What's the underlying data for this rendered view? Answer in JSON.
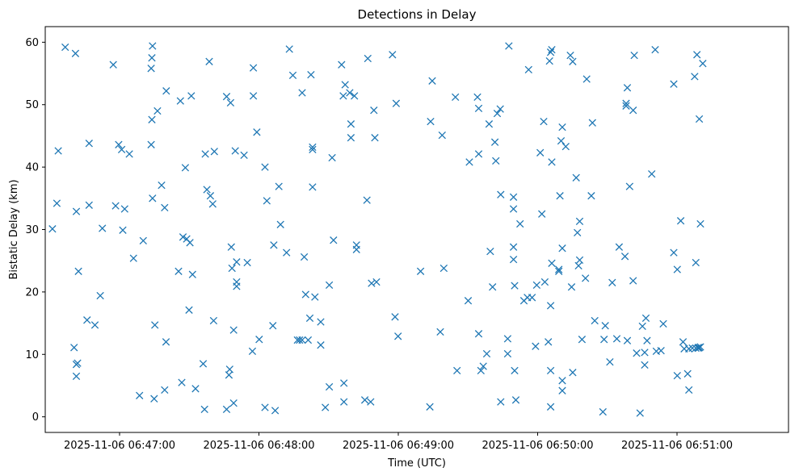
{
  "chart_data": {
    "type": "scatter",
    "title": "Detections in Delay",
    "xlabel": "Time (UTC)",
    "ylabel": "Bistatic Delay (km)",
    "marker": "x",
    "color": "#1f77b4",
    "grid": false,
    "x_start_time": "2025-11-06 06:46:30",
    "x_unit": "seconds",
    "xlim": [
      -2,
      318
    ],
    "ylim": [
      -2.5,
      62.5
    ],
    "x_ticks": [
      {
        "x": 30,
        "label": "2025-11-06 06:47:00"
      },
      {
        "x": 90,
        "label": "2025-11-06 06:48:00"
      },
      {
        "x": 150,
        "label": "2025-11-06 06:49:00"
      },
      {
        "x": 210,
        "label": "2025-11-06 06:50:00"
      },
      {
        "x": 270,
        "label": "2025-11-06 06:51:00"
      }
    ],
    "y_ticks": [
      0,
      10,
      20,
      30,
      40,
      50,
      60
    ],
    "points": [
      [
        1.1,
        30.1
      ],
      [
        3.0,
        34.2
      ],
      [
        3.6,
        42.6
      ],
      [
        6.6,
        59.2
      ],
      [
        10.4,
        11.1
      ],
      [
        11.0,
        58.2
      ],
      [
        11.4,
        32.9
      ],
      [
        11.4,
        8.4
      ],
      [
        11.9,
        8.6
      ],
      [
        11.4,
        6.5
      ],
      [
        12.3,
        23.3
      ],
      [
        16.0,
        15.5
      ],
      [
        16.9,
        43.8
      ],
      [
        16.9,
        33.9
      ],
      [
        19.4,
        14.7
      ],
      [
        21.7,
        19.4
      ],
      [
        22.6,
        30.2
      ],
      [
        27.3,
        56.4
      ],
      [
        28.3,
        33.8
      ],
      [
        29.6,
        43.6
      ],
      [
        30.9,
        42.8
      ],
      [
        31.4,
        29.9
      ],
      [
        32.2,
        33.3
      ],
      [
        34.2,
        42.1
      ],
      [
        36.0,
        25.4
      ],
      [
        38.6,
        3.4
      ],
      [
        40.2,
        28.2
      ],
      [
        43.6,
        55.8
      ],
      [
        43.6,
        43.6
      ],
      [
        43.9,
        47.6
      ],
      [
        43.9,
        57.5
      ],
      [
        44.2,
        59.4
      ],
      [
        44.2,
        35.0
      ],
      [
        44.9,
        2.9
      ],
      [
        45.2,
        14.7
      ],
      [
        46.3,
        49.0
      ],
      [
        48.1,
        37.1
      ],
      [
        49.4,
        4.3
      ],
      [
        49.4,
        33.5
      ],
      [
        50.0,
        12.0
      ],
      [
        50.1,
        52.2
      ],
      [
        55.4,
        23.3
      ],
      [
        56.2,
        50.6
      ],
      [
        56.8,
        5.5
      ],
      [
        57.3,
        28.8
      ],
      [
        58.3,
        39.9
      ],
      [
        58.9,
        28.5
      ],
      [
        59.9,
        17.1
      ],
      [
        60.3,
        27.9
      ],
      [
        60.9,
        51.4
      ],
      [
        61.4,
        22.8
      ],
      [
        62.7,
        4.5
      ],
      [
        66.0,
        8.5
      ],
      [
        66.6,
        1.2
      ],
      [
        66.9,
        42.1
      ],
      [
        67.6,
        36.4
      ],
      [
        68.6,
        56.9
      ],
      [
        69.1,
        35.4
      ],
      [
        70.1,
        34.1
      ],
      [
        70.5,
        15.4
      ],
      [
        70.8,
        42.5
      ],
      [
        76.1,
        1.2
      ],
      [
        76.1,
        51.3
      ],
      [
        77.1,
        6.7
      ],
      [
        77.4,
        7.6
      ],
      [
        77.8,
        50.3
      ],
      [
        78.1,
        27.2
      ],
      [
        78.4,
        23.8
      ],
      [
        79.1,
        2.2
      ],
      [
        79.1,
        13.9
      ],
      [
        79.8,
        42.6
      ],
      [
        80.4,
        24.8
      ],
      [
        80.4,
        21.6
      ],
      [
        80.4,
        20.9
      ],
      [
        83.6,
        41.9
      ],
      [
        85.0,
        24.7
      ],
      [
        87.2,
        10.5
      ],
      [
        87.6,
        55.9
      ],
      [
        87.6,
        51.4
      ],
      [
        89.1,
        45.6
      ],
      [
        90.1,
        12.4
      ],
      [
        92.6,
        40.0
      ],
      [
        92.6,
        1.5
      ],
      [
        93.4,
        34.6
      ],
      [
        96.0,
        14.6
      ],
      [
        96.4,
        27.5
      ],
      [
        97.0,
        1.0
      ],
      [
        98.6,
        36.9
      ],
      [
        99.3,
        30.8
      ],
      [
        101.9,
        26.3
      ],
      [
        103.1,
        58.9
      ],
      [
        104.6,
        54.7
      ],
      [
        106.6,
        12.3
      ],
      [
        107.5,
        12.3
      ],
      [
        108.6,
        12.3
      ],
      [
        108.6,
        51.9
      ],
      [
        109.5,
        25.6
      ],
      [
        110.1,
        19.6
      ],
      [
        111.2,
        12.3
      ],
      [
        111.9,
        15.8
      ],
      [
        112.4,
        54.8
      ],
      [
        113.1,
        36.8
      ],
      [
        113.1,
        43.2
      ],
      [
        113.1,
        42.8
      ],
      [
        114.1,
        19.2
      ],
      [
        116.6,
        15.2
      ],
      [
        116.6,
        11.5
      ],
      [
        118.6,
        1.5
      ],
      [
        120.3,
        4.8
      ],
      [
        120.3,
        21.1
      ],
      [
        121.5,
        41.5
      ],
      [
        122.1,
        28.3
      ],
      [
        125.6,
        56.4
      ],
      [
        126.3,
        51.4
      ],
      [
        126.6,
        5.4
      ],
      [
        126.6,
        2.4
      ],
      [
        127.1,
        53.2
      ],
      [
        129.1,
        51.9
      ],
      [
        129.6,
        46.9
      ],
      [
        129.6,
        44.7
      ],
      [
        131.1,
        51.4
      ],
      [
        132.0,
        27.5
      ],
      [
        132.0,
        26.8
      ],
      [
        135.6,
        2.7
      ],
      [
        136.5,
        34.7
      ],
      [
        136.9,
        57.4
      ],
      [
        138.1,
        2.4
      ],
      [
        138.5,
        21.4
      ],
      [
        139.5,
        49.1
      ],
      [
        139.9,
        44.7
      ],
      [
        140.6,
        21.6
      ],
      [
        147.5,
        58.0
      ],
      [
        148.6,
        16.0
      ],
      [
        149.1,
        50.2
      ],
      [
        149.9,
        12.9
      ],
      [
        159.6,
        23.3
      ],
      [
        163.6,
        1.6
      ],
      [
        163.9,
        47.3
      ],
      [
        164.6,
        53.8
      ],
      [
        168.1,
        13.6
      ],
      [
        168.9,
        45.1
      ],
      [
        169.6,
        23.8
      ],
      [
        174.6,
        51.2
      ],
      [
        175.3,
        7.4
      ],
      [
        180.1,
        18.6
      ],
      [
        180.6,
        40.8
      ],
      [
        184.1,
        51.2
      ],
      [
        184.6,
        49.4
      ],
      [
        184.6,
        42.1
      ],
      [
        184.6,
        13.3
      ],
      [
        185.6,
        7.4
      ],
      [
        186.6,
        8.1
      ],
      [
        188.1,
        10.1
      ],
      [
        189.1,
        46.9
      ],
      [
        189.6,
        26.5
      ],
      [
        190.6,
        20.8
      ],
      [
        191.6,
        44.0
      ],
      [
        192.0,
        41.0
      ],
      [
        192.6,
        48.6
      ],
      [
        193.9,
        49.3
      ],
      [
        194.1,
        35.6
      ],
      [
        194.1,
        2.4
      ],
      [
        197.1,
        12.5
      ],
      [
        197.1,
        10.1
      ],
      [
        197.6,
        59.4
      ],
      [
        199.6,
        35.2
      ],
      [
        199.6,
        33.3
      ],
      [
        199.6,
        27.2
      ],
      [
        199.6,
        25.2
      ],
      [
        200.1,
        21.0
      ],
      [
        200.1,
        7.4
      ],
      [
        200.6,
        2.7
      ],
      [
        202.4,
        30.9
      ],
      [
        204.1,
        18.6
      ],
      [
        205.6,
        19.1
      ],
      [
        206.1,
        55.6
      ],
      [
        207.6,
        19.1
      ],
      [
        209.1,
        11.3
      ],
      [
        209.6,
        21.1
      ],
      [
        211.1,
        42.3
      ],
      [
        211.8,
        32.5
      ],
      [
        212.6,
        47.3
      ],
      [
        213.1,
        21.6
      ],
      [
        214.6,
        12.0
      ],
      [
        215.1,
        57.0
      ],
      [
        215.6,
        58.4
      ],
      [
        215.6,
        17.8
      ],
      [
        215.6,
        7.4
      ],
      [
        215.6,
        1.6
      ],
      [
        216.1,
        58.8
      ],
      [
        216.1,
        24.6
      ],
      [
        216.1,
        40.8
      ],
      [
        219.1,
        23.6
      ],
      [
        219.1,
        23.3
      ],
      [
        219.6,
        35.4
      ],
      [
        220.1,
        44.2
      ],
      [
        220.6,
        46.4
      ],
      [
        220.6,
        27.0
      ],
      [
        220.6,
        5.8
      ],
      [
        220.6,
        4.2
      ],
      [
        222.1,
        43.3
      ],
      [
        224.1,
        57.9
      ],
      [
        224.6,
        20.8
      ],
      [
        225.1,
        56.9
      ],
      [
        225.1,
        7.1
      ],
      [
        226.6,
        38.3
      ],
      [
        227.1,
        29.5
      ],
      [
        227.6,
        24.2
      ],
      [
        228.1,
        25.1
      ],
      [
        228.1,
        31.3
      ],
      [
        229.1,
        12.4
      ],
      [
        230.6,
        22.2
      ],
      [
        231.1,
        54.1
      ],
      [
        233.1,
        35.4
      ],
      [
        233.6,
        47.1
      ],
      [
        234.6,
        15.4
      ],
      [
        238.1,
        0.8
      ],
      [
        238.6,
        12.4
      ],
      [
        239.1,
        14.6
      ],
      [
        241.1,
        8.8
      ],
      [
        242.1,
        21.5
      ],
      [
        244.1,
        12.5
      ],
      [
        245.1,
        27.2
      ],
      [
        247.6,
        25.7
      ],
      [
        248.1,
        50.2
      ],
      [
        248.1,
        49.8
      ],
      [
        248.6,
        52.7
      ],
      [
        248.6,
        12.2
      ],
      [
        249.6,
        36.9
      ],
      [
        251.1,
        49.1
      ],
      [
        251.1,
        21.8
      ],
      [
        251.6,
        57.9
      ],
      [
        252.6,
        10.2
      ],
      [
        254.1,
        0.6
      ],
      [
        255.1,
        14.5
      ],
      [
        256.1,
        10.3
      ],
      [
        256.1,
        8.3
      ],
      [
        256.6,
        15.8
      ],
      [
        257.1,
        12.2
      ],
      [
        259.1,
        38.9
      ],
      [
        260.6,
        58.8
      ],
      [
        261.1,
        10.5
      ],
      [
        263.1,
        10.6
      ],
      [
        264.1,
        14.9
      ],
      [
        268.6,
        53.3
      ],
      [
        268.6,
        26.3
      ],
      [
        270.1,
        6.6
      ],
      [
        270.1,
        23.6
      ],
      [
        271.6,
        31.4
      ],
      [
        272.6,
        12.0
      ],
      [
        273.1,
        10.9
      ],
      [
        274.6,
        6.9
      ],
      [
        275.1,
        10.9
      ],
      [
        275.1,
        4.3
      ],
      [
        276.6,
        11.0
      ],
      [
        277.6,
        54.5
      ],
      [
        278.1,
        24.7
      ],
      [
        278.1,
        11.0
      ],
      [
        278.6,
        58.0
      ],
      [
        279.1,
        11.0
      ],
      [
        279.1,
        11.1
      ],
      [
        279.6,
        47.7
      ],
      [
        279.6,
        11.1
      ],
      [
        280.1,
        11.2
      ],
      [
        280.1,
        30.9
      ],
      [
        281.1,
        56.6
      ]
    ]
  }
}
